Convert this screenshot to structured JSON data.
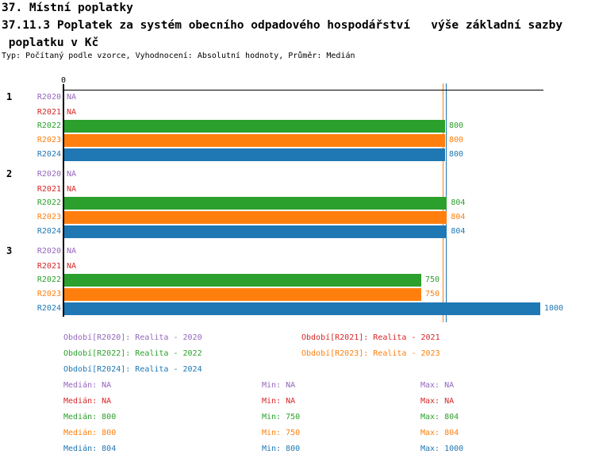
{
  "header": {
    "title": "37. Místní poplatky",
    "subtitle_line1": "37.11.3 Poplatek za systém obecního odpadového hospodářství   výše základní sazby",
    "subtitle_line2": " poplatku v Kč",
    "meta": "Typ: Počítaný podle vzorce, Vyhodnocení: Absolutní hodnoty, Průměr: Medián"
  },
  "chart_data": {
    "type": "bar",
    "orientation": "horizontal",
    "title": "37.11.3 Poplatek za systém obecního odpadového hospodářství   výše základní sazby poplatku v Kč",
    "x_axis": {
      "origin_tick_label": "0",
      "xlim": [
        0,
        1007
      ],
      "gridlines": false
    },
    "group_labels": [
      "1",
      "2",
      "3"
    ],
    "series": [
      {
        "name": "R2020",
        "legend": "Období[R2020]: Realita - 2020",
        "color": "#9467bd",
        "values": [
          null,
          null,
          null
        ],
        "display": [
          "NA",
          "NA",
          "NA"
        ],
        "median": "NA",
        "min": "NA",
        "max": "NA"
      },
      {
        "name": "R2021",
        "legend": "Období[R2021]: Realita - 2021",
        "color": "#d62728",
        "values": [
          null,
          null,
          null
        ],
        "display": [
          "NA",
          "NA",
          "NA"
        ],
        "median": "NA",
        "min": "NA",
        "max": "NA"
      },
      {
        "name": "R2022",
        "legend": "Období[R2022]: Realita - 2022",
        "color": "#2ca02c",
        "values": [
          800,
          804,
          750
        ],
        "display": [
          "800",
          "804",
          "750"
        ],
        "median": "800",
        "min": "750",
        "max": "804"
      },
      {
        "name": "R2023",
        "legend": "Období[R2023]: Realita - 2023",
        "color": "#ff7f0e",
        "values": [
          800,
          804,
          750
        ],
        "display": [
          "800",
          "804",
          "750"
        ],
        "median": "800",
        "min": "750",
        "max": "804"
      },
      {
        "name": "R2024",
        "legend": "Období[R2024]: Realita - 2024",
        "color": "#1f77b4",
        "values": [
          800,
          804,
          1000
        ],
        "display": [
          "800",
          "804",
          "1000"
        ],
        "median": "804",
        "min": "800",
        "max": "1000"
      }
    ],
    "median_lines": [
      {
        "series": "R2022",
        "value": 800,
        "color": "#2ca02c"
      },
      {
        "series": "R2023",
        "value": 800,
        "color": "#ff7f0e"
      },
      {
        "series": "R2024",
        "value": 804,
        "color": "#1f77b4"
      }
    ]
  },
  "legend": {
    "left_column": [
      "R2020",
      "R2022",
      "R2024"
    ],
    "right_column": [
      "R2021",
      "R2023"
    ]
  },
  "stats_labels": {
    "median": "Medián",
    "min": "Min",
    "max": "Max"
  }
}
